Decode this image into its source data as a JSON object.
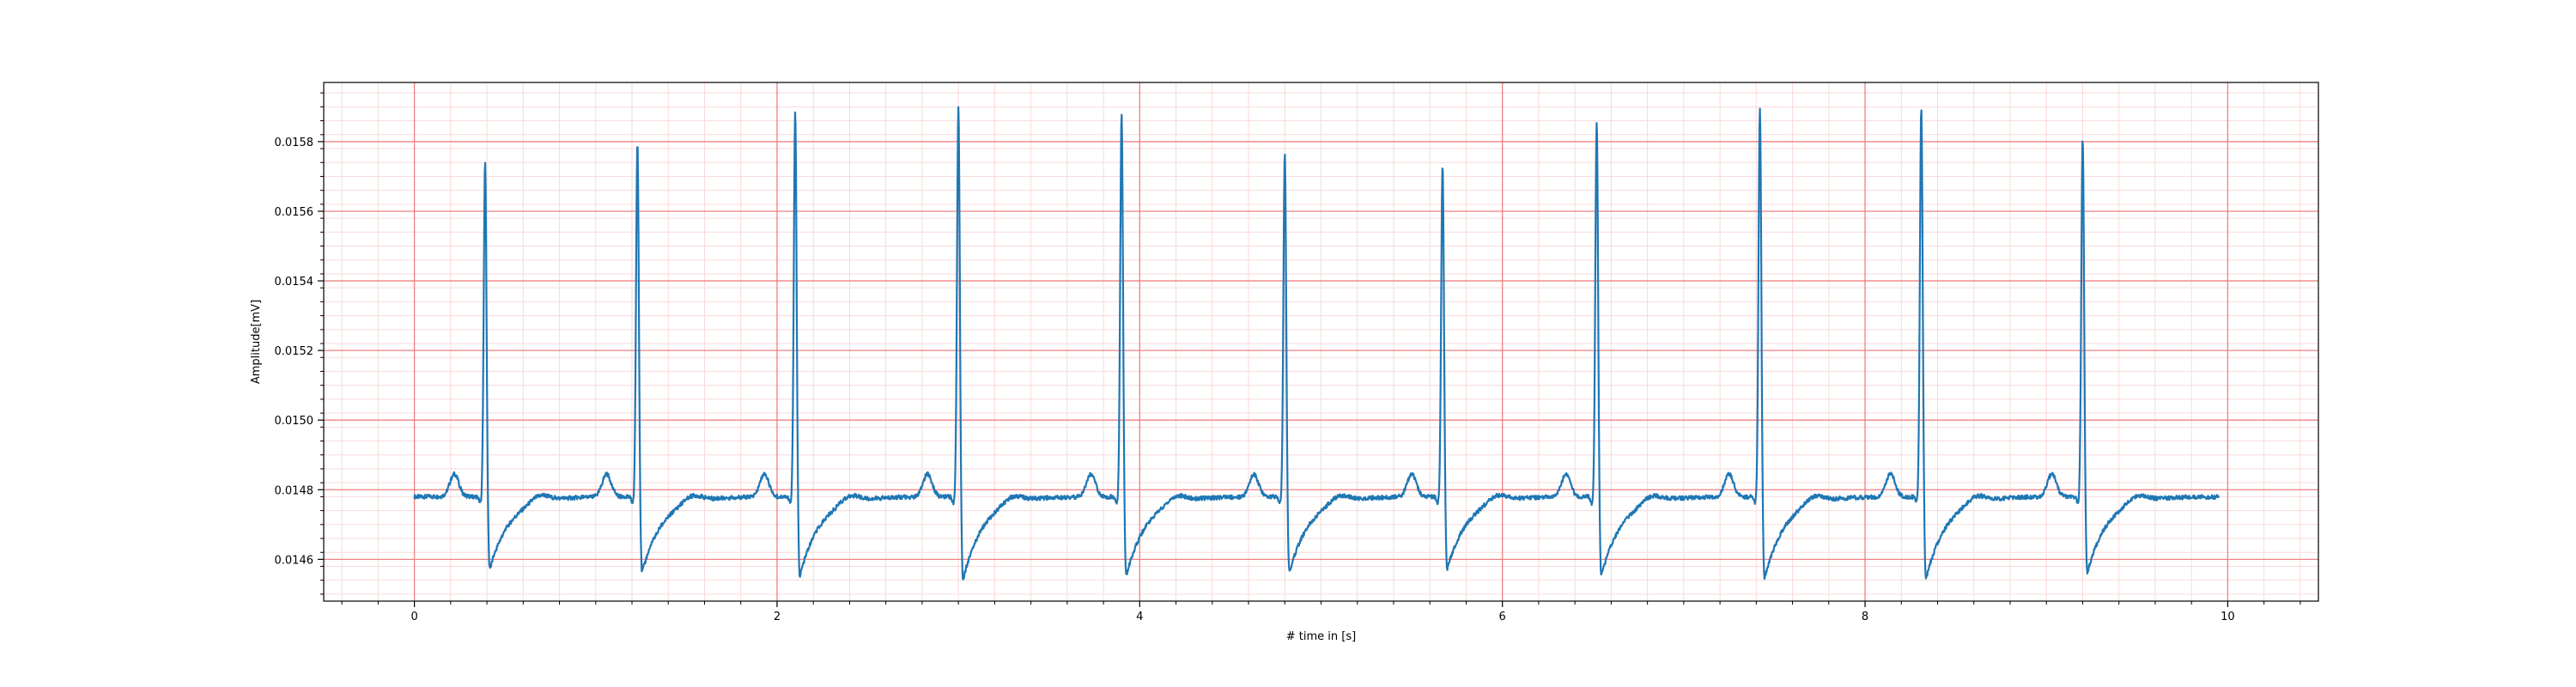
{
  "chart_data": {
    "type": "line",
    "title": "",
    "xlabel": "# time in [s]",
    "ylabel": "Amplitude[mV]",
    "xlim": [
      -0.5,
      10.5
    ],
    "ylim": [
      0.01448,
      0.01597
    ],
    "x_ticks": [
      0,
      2,
      4,
      6,
      8,
      10
    ],
    "x_tick_labels": [
      "0",
      "2",
      "4",
      "6",
      "8",
      "10"
    ],
    "y_ticks": [
      0.0146,
      0.0148,
      0.015,
      0.0152,
      0.0154,
      0.0156,
      0.0158
    ],
    "y_tick_labels": [
      "0.0146",
      "0.0148",
      "0.0150",
      "0.0152",
      "0.0154",
      "0.0156",
      "0.0158"
    ],
    "grid": true,
    "grid_major_color": "#f08080",
    "grid_minor_color": "#fadada",
    "line_color": "#1f77b4",
    "legend": "none",
    "baseline": 0.01478,
    "beats": [
      {
        "t": 0.39,
        "peak": 0.01574,
        "trough": 0.01457
      },
      {
        "t": 1.23,
        "peak": 0.0158,
        "trough": 0.01456
      },
      {
        "t": 2.1,
        "peak": 0.01589,
        "trough": 0.01455
      },
      {
        "t": 3.0,
        "peak": 0.0159,
        "trough": 0.01454
      },
      {
        "t": 3.9,
        "peak": 0.01588,
        "trough": 0.01455
      },
      {
        "t": 4.8,
        "peak": 0.01577,
        "trough": 0.01456
      },
      {
        "t": 5.67,
        "peak": 0.01573,
        "trough": 0.01457
      },
      {
        "t": 6.52,
        "peak": 0.01586,
        "trough": 0.01455
      },
      {
        "t": 7.42,
        "peak": 0.0159,
        "trough": 0.01454
      },
      {
        "t": 8.31,
        "peak": 0.0159,
        "trough": 0.01454
      },
      {
        "t": 9.2,
        "peak": 0.01581,
        "trough": 0.01456
      }
    ],
    "series": [
      {
        "x_start": 0.0,
        "x_end": 9.95
      }
    ]
  }
}
